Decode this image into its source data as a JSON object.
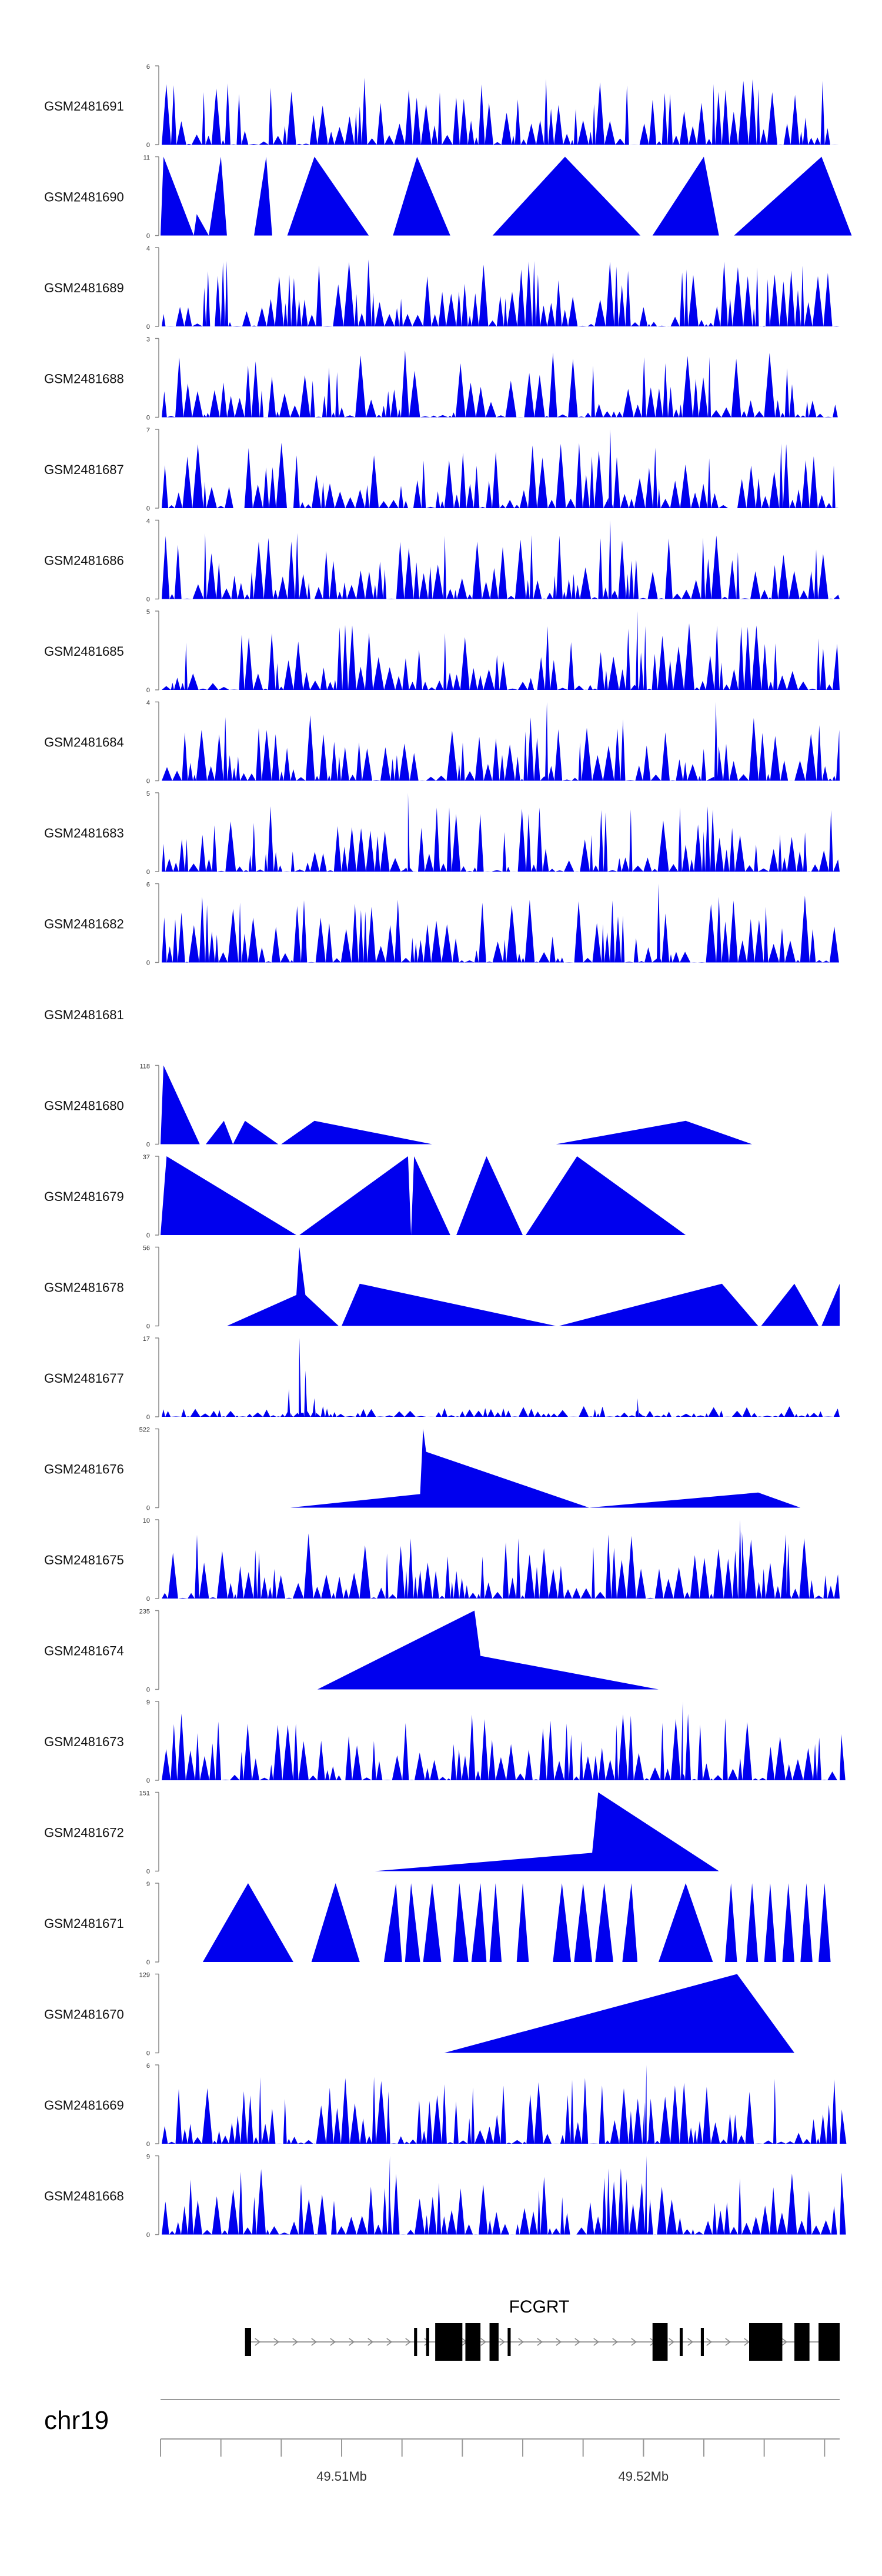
{
  "chart_data": {
    "type": "area",
    "title": "",
    "chromosome": "chr19",
    "x_range_mb": [
      49.504,
      49.5265
    ],
    "fill_color": "#0000ee",
    "axis": {
      "ticks_mb": [
        49.504,
        49.506,
        49.508,
        49.51,
        49.512,
        49.514,
        49.516,
        49.518,
        49.52,
        49.522,
        49.524,
        49.526
      ],
      "labels": [
        {
          "at_mb": 49.51,
          "text": "49.51Mb"
        },
        {
          "at_mb": 49.52,
          "text": "49.52Mb"
        }
      ]
    },
    "gene": {
      "name": "FCGRT",
      "start_mb": 49.5068,
      "end_mb": 49.5265,
      "strand": "+",
      "exons_mb": [
        [
          49.5068,
          49.507
        ],
        [
          49.5124,
          49.5125
        ],
        [
          49.5128,
          49.5129
        ],
        [
          49.5131,
          49.514
        ],
        [
          49.5141,
          49.5146
        ],
        [
          49.5149,
          49.5152
        ],
        [
          49.5155,
          49.5156
        ],
        [
          49.5203,
          49.5208
        ],
        [
          49.5212,
          49.5213
        ],
        [
          49.5219,
          49.522
        ],
        [
          49.5235,
          49.5246
        ],
        [
          49.525,
          49.5255
        ],
        [
          49.5258,
          49.5265
        ]
      ]
    },
    "series": [
      {
        "name": "GSM2481691",
        "ymax": 6,
        "kind": "dense",
        "seed": 91,
        "peaks": []
      },
      {
        "name": "GSM2481690",
        "ymax": 11,
        "kind": "sparse",
        "points": [
          [
            49.504,
            0
          ],
          [
            49.5041,
            11
          ],
          [
            49.5051,
            0
          ],
          [
            49.5052,
            3
          ],
          [
            49.5056,
            0
          ],
          [
            49.506,
            11
          ],
          [
            49.5062,
            0
          ],
          [
            49.5071,
            0
          ],
          [
            49.5075,
            11
          ],
          [
            49.5077,
            0
          ],
          [
            49.5082,
            0
          ],
          [
            49.5091,
            11
          ],
          [
            49.5109,
            0
          ],
          [
            49.5117,
            0
          ],
          [
            49.5125,
            11
          ],
          [
            49.5136,
            0
          ],
          [
            49.515,
            0
          ],
          [
            49.5174,
            11
          ],
          [
            49.5199,
            0
          ],
          [
            49.5203,
            0
          ],
          [
            49.522,
            11
          ],
          [
            49.5225,
            0
          ],
          [
            49.523,
            0
          ],
          [
            49.5259,
            11
          ],
          [
            49.5269,
            0
          ]
        ]
      },
      {
        "name": "GSM2481689",
        "ymax": 4,
        "kind": "dense",
        "seed": 89,
        "peaks": []
      },
      {
        "name": "GSM2481688",
        "ymax": 3,
        "kind": "dense",
        "seed": 88,
        "peaks": []
      },
      {
        "name": "GSM2481687",
        "ymax": 7,
        "kind": "dense",
        "seed": 87,
        "peaks": [
          [
            49.5189,
            7
          ]
        ]
      },
      {
        "name": "GSM2481686",
        "ymax": 4,
        "kind": "dense",
        "seed": 86,
        "peaks": [
          [
            49.5189,
            4
          ]
        ]
      },
      {
        "name": "GSM2481685",
        "ymax": 5,
        "kind": "dense",
        "seed": 85,
        "peaks": [
          [
            49.5198,
            5
          ]
        ]
      },
      {
        "name": "GSM2481684",
        "ymax": 4,
        "kind": "dense",
        "seed": 84,
        "peaks": [
          [
            49.5168,
            4
          ],
          [
            49.5224,
            4
          ]
        ]
      },
      {
        "name": "GSM2481683",
        "ymax": 5,
        "kind": "dense",
        "seed": 83,
        "peaks": [
          [
            49.5122,
            5
          ]
        ]
      },
      {
        "name": "GSM2481682",
        "ymax": 6,
        "kind": "dense",
        "seed": 82,
        "peaks": [
          [
            49.5205,
            6
          ]
        ]
      },
      {
        "name": "GSM2481681",
        "ymax": null,
        "kind": "empty",
        "points": []
      },
      {
        "name": "GSM2481680",
        "ymax": 118,
        "kind": "sparse",
        "points": [
          [
            49.504,
            0
          ],
          [
            49.5041,
            118
          ],
          [
            49.5053,
            0
          ],
          [
            49.5055,
            0
          ],
          [
            49.5061,
            35
          ],
          [
            49.5064,
            0
          ],
          [
            49.5068,
            35
          ],
          [
            49.5079,
            0
          ],
          [
            49.508,
            0
          ],
          [
            49.5091,
            35
          ],
          [
            49.513,
            0
          ],
          [
            49.5171,
            0
          ],
          [
            49.5214,
            35
          ],
          [
            49.5236,
            0
          ]
        ]
      },
      {
        "name": "GSM2481679",
        "ymax": 37,
        "kind": "sparse",
        "points": [
          [
            49.504,
            0
          ],
          [
            49.5042,
            37
          ],
          [
            49.5085,
            0
          ],
          [
            49.5086,
            0
          ],
          [
            49.5122,
            37
          ],
          [
            49.5123,
            0
          ],
          [
            49.5124,
            37
          ],
          [
            49.5136,
            0
          ],
          [
            49.5138,
            0
          ],
          [
            49.5148,
            37
          ],
          [
            49.516,
            0
          ],
          [
            49.5161,
            0
          ],
          [
            49.5178,
            37
          ],
          [
            49.5214,
            0
          ]
        ]
      },
      {
        "name": "GSM2481678",
        "ymax": 56,
        "kind": "sparse",
        "points": [
          [
            49.5062,
            0
          ],
          [
            49.5085,
            22
          ],
          [
            49.5086,
            56
          ],
          [
            49.5088,
            22
          ],
          [
            49.5099,
            0
          ],
          [
            49.51,
            0
          ],
          [
            49.5106,
            30
          ],
          [
            49.5171,
            0
          ],
          [
            49.5172,
            0
          ],
          [
            49.5226,
            30
          ],
          [
            49.5238,
            0
          ],
          [
            49.5239,
            0
          ],
          [
            49.525,
            30
          ],
          [
            49.5258,
            0
          ],
          [
            49.5259,
            0
          ],
          [
            49.5265,
            30
          ],
          [
            49.5265,
            0
          ]
        ]
      },
      {
        "name": "GSM2481677",
        "ymax": 17,
        "kind": "dense",
        "seed": 77,
        "scale": 0.16,
        "peaks": [
          [
            49.50825,
            6
          ],
          [
            49.5086,
            17
          ],
          [
            49.5088,
            10
          ],
          [
            49.5091,
            4
          ],
          [
            49.5198,
            4
          ]
        ]
      },
      {
        "name": "GSM2481676",
        "ymax": 522,
        "kind": "sparse",
        "points": [
          [
            49.5083,
            0
          ],
          [
            49.5126,
            90
          ],
          [
            49.5127,
            522
          ],
          [
            49.5128,
            370
          ],
          [
            49.5182,
            0
          ],
          [
            49.5238,
            100
          ],
          [
            49.5252,
            0
          ]
        ]
      },
      {
        "name": "GSM2481675",
        "ymax": 10,
        "kind": "dense",
        "seed": 75,
        "peaks": [
          [
            49.5232,
            10
          ],
          [
            49.5248,
            7
          ]
        ]
      },
      {
        "name": "GSM2481674",
        "ymax": 235,
        "kind": "sparse",
        "points": [
          [
            49.5092,
            0
          ],
          [
            49.5144,
            235
          ],
          [
            49.5146,
            100
          ],
          [
            49.5205,
            0
          ]
        ]
      },
      {
        "name": "GSM2481673",
        "ymax": 9,
        "kind": "dense",
        "seed": 73,
        "peaks": [
          [
            49.5213,
            9
          ]
        ]
      },
      {
        "name": "GSM2481672",
        "ymax": 151,
        "kind": "sparse",
        "points": [
          [
            49.5111,
            0
          ],
          [
            49.5183,
            35
          ],
          [
            49.5185,
            151
          ],
          [
            49.5225,
            0
          ]
        ]
      },
      {
        "name": "GSM2481671",
        "ymax": 9,
        "kind": "sparse",
        "points": [
          [
            49.5054,
            0
          ],
          [
            49.5069,
            9
          ],
          [
            49.5084,
            0
          ],
          [
            49.509,
            0
          ],
          [
            49.5098,
            9
          ],
          [
            49.5106,
            0
          ],
          [
            49.5114,
            0
          ],
          [
            49.5118,
            9
          ],
          [
            49.512,
            0
          ],
          [
            49.5121,
            0
          ],
          [
            49.5123,
            9
          ],
          [
            49.5126,
            0
          ],
          [
            49.5127,
            0
          ],
          [
            49.513,
            9
          ],
          [
            49.5133,
            0
          ],
          [
            49.5137,
            0
          ],
          [
            49.5139,
            9
          ],
          [
            49.5142,
            0
          ],
          [
            49.5143,
            0
          ],
          [
            49.5146,
            9
          ],
          [
            49.5148,
            0
          ],
          [
            49.5149,
            0
          ],
          [
            49.5151,
            9
          ],
          [
            49.5153,
            0
          ],
          [
            49.5158,
            0
          ],
          [
            49.516,
            9
          ],
          [
            49.5162,
            0
          ],
          [
            49.517,
            0
          ],
          [
            49.5173,
            9
          ],
          [
            49.5176,
            0
          ],
          [
            49.5177,
            0
          ],
          [
            49.518,
            9
          ],
          [
            49.5183,
            0
          ],
          [
            49.5184,
            0
          ],
          [
            49.5187,
            9
          ],
          [
            49.519,
            0
          ],
          [
            49.5193,
            0
          ],
          [
            49.5196,
            9
          ],
          [
            49.5198,
            0
          ],
          [
            49.5205,
            0
          ],
          [
            49.5214,
            9
          ],
          [
            49.5223,
            0
          ],
          [
            49.5227,
            0
          ],
          [
            49.5229,
            9
          ],
          [
            49.5231,
            0
          ],
          [
            49.5234,
            0
          ],
          [
            49.5236,
            9
          ],
          [
            49.5238,
            0
          ],
          [
            49.524,
            0
          ],
          [
            49.5242,
            9
          ],
          [
            49.5244,
            0
          ],
          [
            49.5246,
            0
          ],
          [
            49.5248,
            9
          ],
          [
            49.525,
            0
          ],
          [
            49.5252,
            0
          ],
          [
            49.5254,
            9
          ],
          [
            49.5256,
            0
          ],
          [
            49.5258,
            0
          ],
          [
            49.526,
            9
          ],
          [
            49.5262,
            0
          ]
        ]
      },
      {
        "name": "GSM2481670",
        "ymax": 129,
        "kind": "sparse",
        "points": [
          [
            49.5134,
            0
          ],
          [
            49.5231,
            129
          ],
          [
            49.525,
            0
          ]
        ]
      },
      {
        "name": "GSM2481669",
        "ymax": 6,
        "kind": "dense",
        "seed": 69,
        "peaks": [
          [
            49.5201,
            6
          ]
        ]
      },
      {
        "name": "GSM2481668",
        "ymax": 9,
        "kind": "dense",
        "seed": 68,
        "peaks": [
          [
            49.5116,
            9
          ],
          [
            49.5201,
            9
          ]
        ]
      }
    ]
  }
}
